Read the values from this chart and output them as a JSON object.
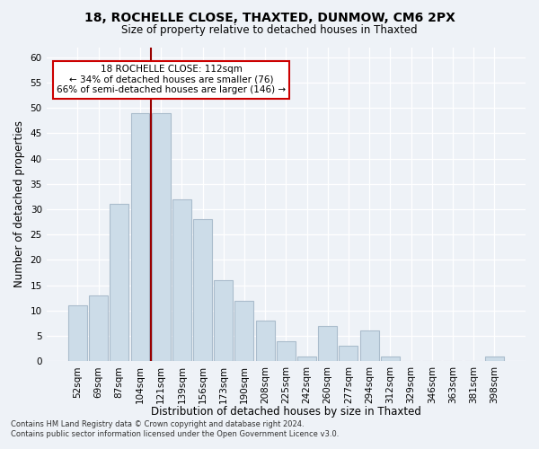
{
  "title": "18, ROCHELLE CLOSE, THAXTED, DUNMOW, CM6 2PX",
  "subtitle": "Size of property relative to detached houses in Thaxted",
  "xlabel": "Distribution of detached houses by size in Thaxted",
  "ylabel": "Number of detached properties",
  "bar_labels": [
    "52sqm",
    "69sqm",
    "87sqm",
    "104sqm",
    "121sqm",
    "139sqm",
    "156sqm",
    "173sqm",
    "190sqm",
    "208sqm",
    "225sqm",
    "242sqm",
    "260sqm",
    "277sqm",
    "294sqm",
    "312sqm",
    "329sqm",
    "346sqm",
    "363sqm",
    "381sqm",
    "398sqm"
  ],
  "bar_values": [
    11,
    13,
    31,
    49,
    49,
    32,
    28,
    16,
    12,
    8,
    4,
    1,
    7,
    3,
    6,
    1,
    0,
    0,
    0,
    0,
    1
  ],
  "bar_color": "#ccdce8",
  "bar_edgecolor": "#aabccc",
  "vline_x": 3.5,
  "vline_color": "#990000",
  "annotation_line1": "18 ROCHELLE CLOSE: 112sqm",
  "annotation_line2": "← 34% of detached houses are smaller (76)",
  "annotation_line3": "66% of semi-detached houses are larger (146) →",
  "annotation_box_color": "#ffffff",
  "annotation_box_edgecolor": "#cc0000",
  "ylim": [
    0,
    62
  ],
  "yticks": [
    0,
    5,
    10,
    15,
    20,
    25,
    30,
    35,
    40,
    45,
    50,
    55,
    60
  ],
  "footer_line1": "Contains HM Land Registry data © Crown copyright and database right 2024.",
  "footer_line2": "Contains public sector information licensed under the Open Government Licence v3.0.",
  "bg_color": "#eef2f7",
  "plot_bg_color": "#eef2f7"
}
